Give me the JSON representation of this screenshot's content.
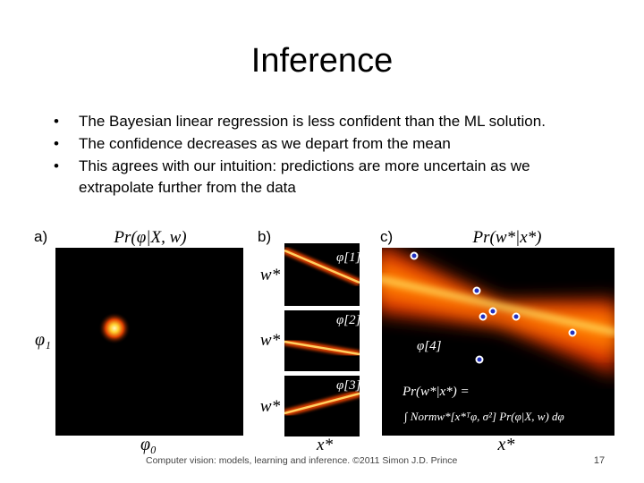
{
  "header": {
    "title": "Inference"
  },
  "bullets": [
    "The Bayesian linear regression is less confident than the ML solution.",
    "The confidence decreases as we depart from the mean",
    "This agrees with our intuition: predictions are more uncertain as we",
    "extrapolate further from the data"
  ],
  "figure": {
    "panels": [
      {
        "label": "a)",
        "title": "Pr(φ|X, w)",
        "y_axis": "φ₁",
        "x_axis": "φ₀"
      },
      {
        "label": "b)",
        "y_axis": "w*",
        "x_axis": "x*",
        "samples": [
          "φ[1]",
          "φ[2]",
          "φ[3]"
        ]
      },
      {
        "label": "c)",
        "title": "Pr(w*|x*)",
        "x_axis": "x*",
        "mean_label": "φ[4]",
        "formula_lhs": "Pr(w*|x*) =",
        "formula_rhs": "∫ Normw*[x*ᵀφ, σ²] Pr(φ|X, w) dφ"
      }
    ]
  },
  "footer": {
    "text": "Computer vision: models, learning and inference.  ©2011 Simon J.D. Prince",
    "page": "17"
  }
}
